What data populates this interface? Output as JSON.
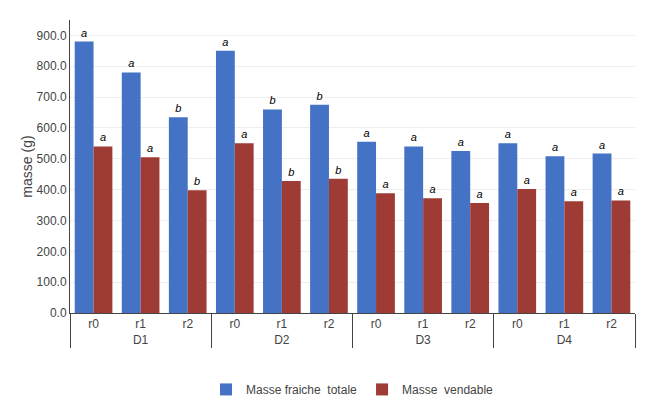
{
  "chart_data": {
    "type": "bar",
    "ylabel": "masse (g)",
    "groups": [
      "D1",
      "D1",
      "D1",
      "D2",
      "D2",
      "D2",
      "D3",
      "D3",
      "D3",
      "D4",
      "D4",
      "D4"
    ],
    "categories": [
      "r0",
      "r1",
      "r2",
      "r0",
      "r1",
      "r2",
      "r0",
      "r1",
      "r2",
      "r0",
      "r1",
      "r2"
    ],
    "series": [
      {
        "name": "Masse fraiche  totale",
        "color": "#4472C4",
        "values": [
          880,
          780,
          635,
          850,
          660,
          675,
          555,
          540,
          525,
          550,
          508,
          517
        ],
        "labels": [
          "a",
          "a",
          "b",
          "a",
          "b",
          "b",
          "a",
          "a",
          "a",
          "a",
          "a",
          "a"
        ]
      },
      {
        "name": "Masse  vendable",
        "color": "#9E3B35",
        "values": [
          540,
          505,
          398,
          550,
          428,
          435,
          388,
          372,
          357,
          402,
          362,
          365
        ],
        "labels": [
          "a",
          "a",
          "b",
          "a",
          "b",
          "b",
          "a",
          "a",
          "a",
          "a",
          "a",
          "a"
        ]
      }
    ],
    "ylim": [
      0,
      950
    ],
    "yticks": [
      {
        "value": 0,
        "label": "0.0"
      },
      {
        "value": 100,
        "label": "100.0"
      },
      {
        "value": 200,
        "label": "200.0"
      },
      {
        "value": 300,
        "label": "300.0"
      },
      {
        "value": 400,
        "label": "400.0"
      },
      {
        "value": 500,
        "label": "500.0"
      },
      {
        "value": 600,
        "label": "600.0"
      },
      {
        "value": 700,
        "label": "700.0"
      },
      {
        "value": 800,
        "label": "800.0"
      },
      {
        "value": 900,
        "label": "900.0"
      }
    ],
    "grid": true,
    "legend": "bottom"
  }
}
